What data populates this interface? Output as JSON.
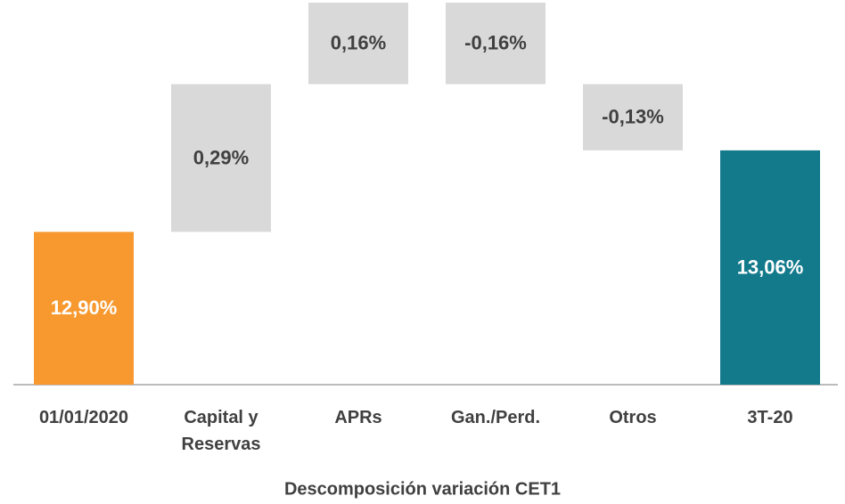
{
  "chart_data": {
    "type": "waterfall",
    "x_label": "Descomposición variación CET1",
    "categories": [
      "01/01/2020",
      "Capital y\nReservas",
      "APRs",
      "Gan./Perd.",
      "Otros",
      "3T-20"
    ],
    "values": [
      12.9,
      0.29,
      0.16,
      -0.16,
      -0.13,
      13.06
    ],
    "value_labels": [
      "12,90%",
      "0,29%",
      "0,16%",
      "-0,16%",
      "-0,13%",
      "13,06%"
    ],
    "measure": [
      "absolute",
      "relative",
      "relative",
      "relative",
      "relative",
      "total"
    ],
    "colors": [
      "#f7992f",
      "#d9d9d9",
      "#d9d9d9",
      "#d9d9d9",
      "#d9d9d9",
      "#137a8c"
    ],
    "ylim": [
      12.6,
      13.35
    ]
  }
}
